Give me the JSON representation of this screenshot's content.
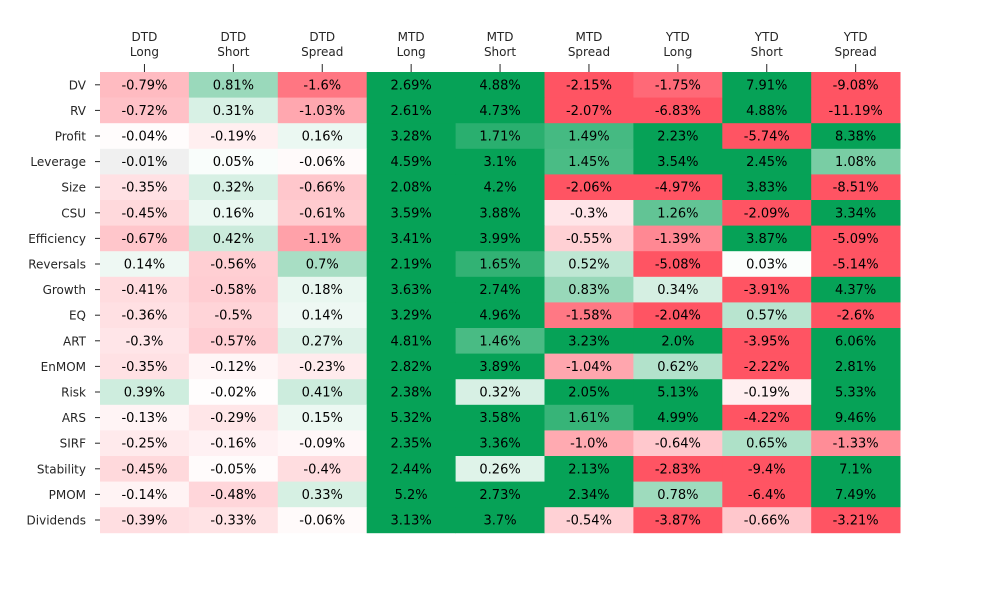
{
  "chart_data": {
    "type": "heatmap",
    "columns": [
      [
        "DTD",
        "Long"
      ],
      [
        "DTD",
        "Short"
      ],
      [
        "DTD",
        "Spread"
      ],
      [
        "MTD",
        "Long"
      ],
      [
        "MTD",
        "Short"
      ],
      [
        "MTD",
        "Spread"
      ],
      [
        "YTD",
        "Long"
      ],
      [
        "YTD",
        "Short"
      ],
      [
        "YTD",
        "Spread"
      ]
    ],
    "rows": [
      "DV",
      "RV",
      "Profit",
      "Leverage",
      "Size",
      "CSU",
      "Efficiency",
      "Reversals",
      "Growth",
      "EQ",
      "ART",
      "EnMOM",
      "Risk",
      "ARS",
      "SIRF",
      "Stability",
      "PMOM",
      "Dividends"
    ],
    "values": [
      [
        -0.79,
        0.81,
        -1.6,
        2.69,
        4.88,
        -2.15,
        -1.75,
        7.91,
        -9.08
      ],
      [
        -0.72,
        0.31,
        -1.03,
        2.61,
        4.73,
        -2.07,
        -6.83,
        4.88,
        -11.19
      ],
      [
        -0.04,
        -0.19,
        0.16,
        3.28,
        1.71,
        1.49,
        2.23,
        -5.74,
        8.38
      ],
      [
        -0.01,
        0.05,
        -0.06,
        4.59,
        3.1,
        1.45,
        3.54,
        2.45,
        1.08
      ],
      [
        -0.35,
        0.32,
        -0.66,
        2.08,
        4.2,
        -2.06,
        -4.97,
        3.83,
        -8.51
      ],
      [
        -0.45,
        0.16,
        -0.61,
        3.59,
        3.88,
        -0.3,
        1.26,
        -2.09,
        3.34
      ],
      [
        -0.67,
        0.42,
        -1.1,
        3.41,
        3.99,
        -0.55,
        -1.39,
        3.87,
        -5.09
      ],
      [
        0.14,
        -0.56,
        0.7,
        2.19,
        1.65,
        0.52,
        -5.08,
        0.03,
        -5.14
      ],
      [
        -0.41,
        -0.58,
        0.18,
        3.63,
        2.74,
        0.83,
        0.34,
        -3.91,
        4.37
      ],
      [
        -0.36,
        -0.5,
        0.14,
        3.29,
        4.96,
        -1.58,
        -2.04,
        0.57,
        -2.6
      ],
      [
        -0.3,
        -0.57,
        0.27,
        4.81,
        1.46,
        3.23,
        2.0,
        -3.95,
        6.06
      ],
      [
        -0.35,
        -0.12,
        -0.23,
        2.82,
        3.89,
        -1.04,
        0.62,
        -2.22,
        2.81
      ],
      [
        0.39,
        -0.02,
        0.41,
        2.38,
        0.32,
        2.05,
        5.13,
        -0.19,
        5.33
      ],
      [
        -0.13,
        -0.29,
        0.15,
        5.32,
        3.58,
        1.61,
        4.99,
        -4.22,
        9.46
      ],
      [
        -0.25,
        -0.16,
        -0.09,
        2.35,
        3.36,
        -1.0,
        -0.64,
        0.65,
        -1.33
      ],
      [
        -0.45,
        -0.05,
        -0.4,
        2.44,
        0.26,
        2.13,
        -2.83,
        -9.4,
        7.1
      ],
      [
        -0.14,
        -0.48,
        0.33,
        5.2,
        2.73,
        2.34,
        0.78,
        -6.4,
        7.49
      ],
      [
        -0.39,
        -0.33,
        -0.06,
        3.13,
        3.7,
        -0.54,
        -3.87,
        -0.66,
        -3.21
      ]
    ],
    "labels": [
      [
        "-0.79%",
        "0.81%",
        "-1.6%",
        "2.69%",
        "4.88%",
        "-2.15%",
        "-1.75%",
        "7.91%",
        "-9.08%"
      ],
      [
        "-0.72%",
        "0.31%",
        "-1.03%",
        "2.61%",
        "4.73%",
        "-2.07%",
        "-6.83%",
        "4.88%",
        "-11.19%"
      ],
      [
        "-0.04%",
        "-0.19%",
        "0.16%",
        "3.28%",
        "1.71%",
        "1.49%",
        "2.23%",
        "-5.74%",
        "8.38%"
      ],
      [
        "-0.01%",
        "0.05%",
        "-0.06%",
        "4.59%",
        "3.1%",
        "1.45%",
        "3.54%",
        "2.45%",
        "1.08%"
      ],
      [
        "-0.35%",
        "0.32%",
        "-0.66%",
        "2.08%",
        "4.2%",
        "-2.06%",
        "-4.97%",
        "3.83%",
        "-8.51%"
      ],
      [
        "-0.45%",
        "0.16%",
        "-0.61%",
        "3.59%",
        "3.88%",
        "-0.3%",
        "1.26%",
        "-2.09%",
        "3.34%"
      ],
      [
        "-0.67%",
        "0.42%",
        "-1.1%",
        "3.41%",
        "3.99%",
        "-0.55%",
        "-1.39%",
        "3.87%",
        "-5.09%"
      ],
      [
        "0.14%",
        "-0.56%",
        "0.7%",
        "2.19%",
        "1.65%",
        "0.52%",
        "-5.08%",
        "0.03%",
        "-5.14%"
      ],
      [
        "-0.41%",
        "-0.58%",
        "0.18%",
        "3.63%",
        "2.74%",
        "0.83%",
        "0.34%",
        "-3.91%",
        "4.37%"
      ],
      [
        "-0.36%",
        "-0.5%",
        "0.14%",
        "3.29%",
        "4.96%",
        "-1.58%",
        "-2.04%",
        "0.57%",
        "-2.6%"
      ],
      [
        "-0.3%",
        "-0.57%",
        "0.27%",
        "4.81%",
        "1.46%",
        "3.23%",
        "2.0%",
        "-3.95%",
        "6.06%"
      ],
      [
        "-0.35%",
        "-0.12%",
        "-0.23%",
        "2.82%",
        "3.89%",
        "-1.04%",
        "0.62%",
        "-2.22%",
        "2.81%"
      ],
      [
        "0.39%",
        "-0.02%",
        "0.41%",
        "2.38%",
        "0.32%",
        "2.05%",
        "5.13%",
        "-0.19%",
        "5.33%"
      ],
      [
        "-0.13%",
        "-0.29%",
        "0.15%",
        "5.32%",
        "3.58%",
        "1.61%",
        "4.99%",
        "-4.22%",
        "9.46%"
      ],
      [
        "-0.25%",
        "-0.16%",
        "-0.09%",
        "2.35%",
        "3.36%",
        "-1.0%",
        "-0.64%",
        "0.65%",
        "-1.33%"
      ],
      [
        "-0.45%",
        "-0.05%",
        "-0.4%",
        "2.44%",
        "0.26%",
        "2.13%",
        "-2.83%",
        "-9.4%",
        "7.1%"
      ],
      [
        "-0.14%",
        "-0.48%",
        "0.33%",
        "5.2%",
        "2.73%",
        "2.34%",
        "0.78%",
        "-6.4%",
        "7.49%"
      ],
      [
        "-0.39%",
        "-0.33%",
        "-0.06%",
        "3.13%",
        "3.7%",
        "-0.54%",
        "-3.87%",
        "-0.66%",
        "-3.21%"
      ]
    ],
    "colors": {
      "positive": "#06a257",
      "negative": "#ff5463",
      "neutral": "#f0f0f0",
      "text": "#000000",
      "axis_text": "#262626"
    },
    "color_scale_limits": [
      -2,
      2
    ],
    "legend": "none",
    "grid": false
  }
}
